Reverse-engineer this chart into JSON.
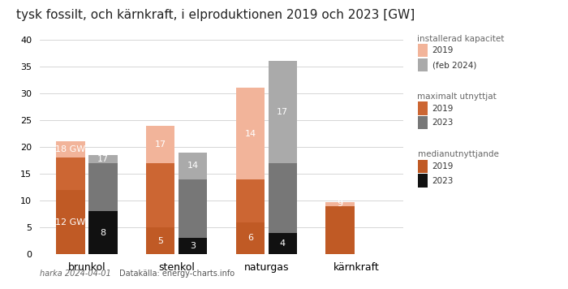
{
  "title": "tysk fossilt, och kärnkraft, i elproduktionen 2019 och 2023 [GW]",
  "categories": [
    "brunkol",
    "stenkol",
    "naturgas",
    "kärnkraft"
  ],
  "bar_width": 0.32,
  "ylim": [
    0,
    42
  ],
  "yticks": [
    0,
    5,
    10,
    15,
    20,
    25,
    30,
    35,
    40
  ],
  "footer_left": "harka 2024-04-01",
  "footer_right": "Datakälla: energy-charts.info",
  "colors": {
    "installed_2019": "#f2b49a",
    "installed_2023": "#aaaaaa",
    "max_2019": "#cc6633",
    "max_2023": "#777777",
    "median_2019": "#c05a25",
    "median_2023": "#111111"
  },
  "data_2019": {
    "installed": [
      21,
      24,
      31,
      9.7
    ],
    "max": [
      18,
      17,
      14,
      9
    ],
    "median": [
      12,
      5,
      6,
      9
    ]
  },
  "data_2023": {
    "installed": [
      18.5,
      19,
      36,
      0
    ],
    "max": [
      17,
      14,
      17,
      0
    ],
    "median": [
      8,
      3,
      4,
      0
    ]
  },
  "labels_2019_inst": [
    "18 GW",
    "17",
    "14",
    "9"
  ],
  "labels_2019_med": [
    "12 GW",
    "5",
    "6",
    ""
  ],
  "labels_2023_inst": [
    "17",
    "14",
    "17",
    ""
  ],
  "labels_2023_med": [
    "8",
    "3",
    "4",
    ""
  ],
  "legend_groups": [
    {
      "title": "installerad kapacitet",
      "items": [
        {
          "color": "#f2b49a",
          "label": "2019"
        },
        {
          "color": "#aaaaaa",
          "label": "(feb 2024)"
        }
      ]
    },
    {
      "title": "maximalt utnyttjat",
      "items": [
        {
          "color": "#cc6633",
          "label": "2019"
        },
        {
          "color": "#777777",
          "label": "2023"
        }
      ]
    },
    {
      "title": "medianutnyttjande",
      "items": [
        {
          "color": "#c05a25",
          "label": "2019"
        },
        {
          "color": "#111111",
          "label": "2023"
        }
      ]
    }
  ]
}
